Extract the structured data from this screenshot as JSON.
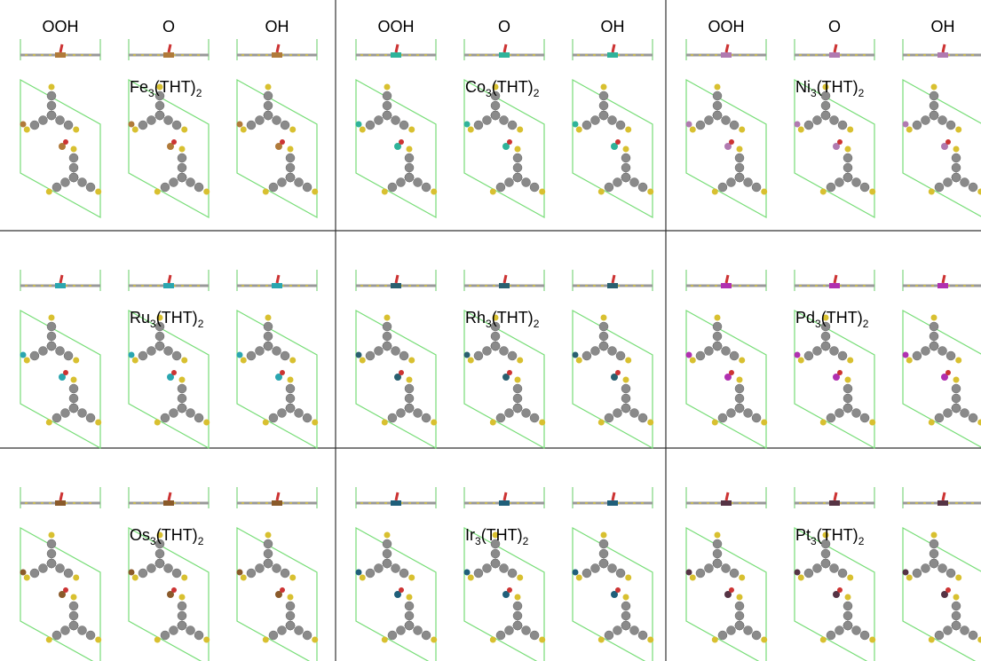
{
  "panels": [
    {
      "headers": [
        "OOH",
        "O",
        "OH"
      ],
      "label": [
        "Fe",
        "3",
        "(THT)",
        "2"
      ]
    },
    {
      "headers": [
        "OOH",
        "O",
        "OH"
      ],
      "label": [
        "Co",
        "3",
        "(THT)",
        "2"
      ]
    },
    {
      "headers": [
        "OOH",
        "O",
        "OH"
      ],
      "label": [
        "Ni",
        "3",
        "(THT)",
        "2"
      ]
    },
    {
      "label": [
        "Ru",
        "3",
        "(THT)",
        "2"
      ]
    },
    {
      "label": [
        "Rh",
        "3",
        "(THT)",
        "2"
      ]
    },
    {
      "label": [
        "Pd",
        "3",
        "(THT)",
        "2"
      ]
    },
    {
      "label": [
        "Os",
        "3",
        "(THT)",
        "2"
      ]
    },
    {
      "label": [
        "Ir",
        "3",
        "(THT)",
        "2"
      ]
    },
    {
      "label": [
        "Pt",
        "3",
        "(THT)",
        "2"
      ]
    }
  ]
}
